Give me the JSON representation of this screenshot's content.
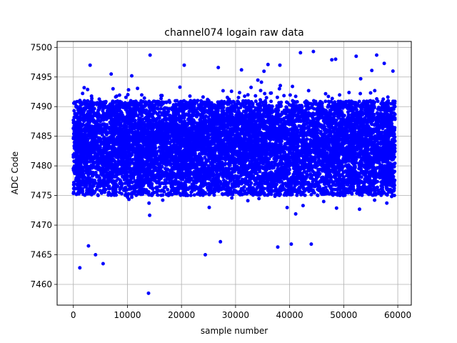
{
  "chart_data": {
    "type": "scatter",
    "title": "channel074 logain raw data",
    "xlabel": "sample number",
    "ylabel": "ADC Code",
    "xlim": [
      -3000,
      62500
    ],
    "ylim": [
      7456.5,
      7501
    ],
    "xticks": [
      0,
      10000,
      20000,
      30000,
      40000,
      50000,
      60000
    ],
    "yticks": [
      7460,
      7465,
      7470,
      7475,
      7480,
      7485,
      7490,
      7495,
      7500
    ],
    "grid": true,
    "marker_color": "#0000ff",
    "x_range": [
      0,
      59500
    ],
    "dense_band": [
      7475,
      7491
    ],
    "mean": 7483.5,
    "std": 3.5,
    "outliers": [
      [
        1200,
        7462.8
      ],
      [
        2800,
        7466.5
      ],
      [
        4100,
        7465.0
      ],
      [
        5500,
        7463.5
      ],
      [
        13900,
        7458.5
      ],
      [
        24400,
        7465.0
      ],
      [
        27200,
        7467.2
      ],
      [
        37800,
        7466.3
      ],
      [
        40300,
        7466.8
      ],
      [
        44000,
        7466.8
      ],
      [
        14200,
        7498.7
      ],
      [
        42000,
        7499.1
      ],
      [
        44400,
        7499.3
      ],
      [
        47800,
        7497.9
      ],
      [
        52300,
        7498.5
      ],
      [
        56100,
        7498.7
      ],
      [
        57500,
        7497.3
      ],
      [
        20500,
        7497.0
      ],
      [
        3100,
        7497.0
      ],
      [
        59100,
        7496.0
      ],
      [
        48500,
        7498.0
      ],
      [
        36000,
        7497.1
      ],
      [
        38200,
        7497.0
      ],
      [
        26800,
        7496.6
      ],
      [
        31100,
        7496.2
      ],
      [
        10800,
        7495.2
      ],
      [
        7000,
        7495.5
      ],
      [
        55200,
        7496.1
      ]
    ]
  }
}
